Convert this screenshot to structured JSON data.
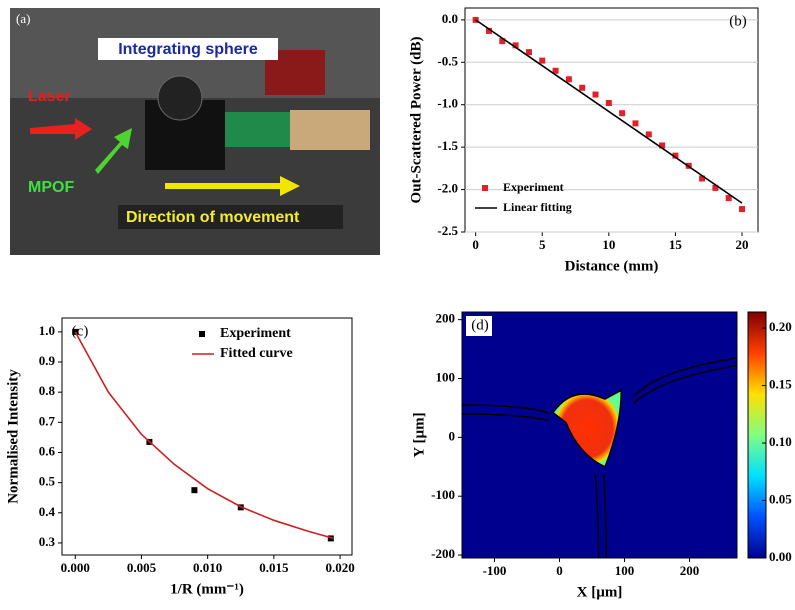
{
  "photo": {
    "panel_label": "(a)",
    "labels": [
      "Integrating sphere",
      "Laser",
      "MPOF",
      "Direction of movement"
    ]
  },
  "chart_data": [
    {
      "type": "scatter",
      "panel_label": "(b)",
      "x_label": "Distance (mm)",
      "y_label": "Out-Scattered Power (dB)",
      "xlim": [
        -0.8,
        21.2
      ],
      "ylim": [
        -2.5,
        0.14
      ],
      "xticks": [
        0,
        5,
        10,
        15,
        20
      ],
      "yticks": [
        {
          "value": 0,
          "label": "0.0"
        },
        -0.5,
        {
          "value": -1,
          "label": "-1.0"
        },
        -1.5,
        {
          "value": -2,
          "label": "-2.0"
        },
        -2.5
      ],
      "grid": true,
      "legend": "lower left",
      "series": [
        {
          "name": "Experiment",
          "type": "scatter",
          "color": "#e0202a",
          "x": [
            0,
            1,
            2,
            3,
            4,
            5,
            6,
            7,
            8,
            9,
            10,
            11,
            12,
            13,
            14,
            15,
            16,
            17,
            18,
            19,
            20
          ],
          "values": [
            0,
            -0.13,
            -0.25,
            -0.3,
            -0.38,
            -0.48,
            -0.6,
            -0.7,
            -0.8,
            -0.88,
            -0.98,
            -1.1,
            -1.22,
            -1.35,
            -1.48,
            -1.6,
            -1.72,
            -1.87,
            -1.98,
            -2.1,
            -2.23
          ]
        },
        {
          "name": "Linear fitting",
          "type": "line",
          "color": "#000000",
          "x": [
            0,
            20
          ],
          "values": [
            0,
            -2.16
          ]
        }
      ]
    },
    {
      "type": "scatter",
      "panel_label": "(c)",
      "x_label": "1/R (mm⁻¹)",
      "y_label": "Normalised Intensity",
      "xlim": [
        -0.001,
        0.0209
      ],
      "ylim": [
        0.26,
        1.046
      ],
      "xticks": [
        {
          "value": 0,
          "label": "0.000"
        },
        {
          "value": 0.005,
          "label": "0.005"
        },
        {
          "value": 0.01,
          "label": "0.010"
        },
        {
          "value": 0.015,
          "label": "0.015"
        },
        {
          "value": 0.02,
          "label": "0.020"
        }
      ],
      "yticks": [
        0.3,
        0.4,
        0.5,
        0.6,
        0.7,
        0.8,
        0.9,
        {
          "value": 1,
          "label": "1.0"
        }
      ],
      "grid": false,
      "legend": "upper right",
      "series": [
        {
          "name": "Experiment",
          "type": "scatter",
          "color": "#000000",
          "x": [
            0,
            0.0056,
            0.009,
            0.0125,
            0.0193
          ],
          "values": [
            1.0,
            0.635,
            0.475,
            0.418,
            0.315
          ]
        },
        {
          "name": "Fitted curve",
          "type": "line",
          "color": "#cc2020",
          "x": [
            0,
            0.0025,
            0.005,
            0.0075,
            0.01,
            0.0125,
            0.015,
            0.0175,
            0.0195
          ],
          "values": [
            1.0,
            0.8,
            0.66,
            0.56,
            0.48,
            0.42,
            0.375,
            0.34,
            0.315
          ]
        }
      ]
    },
    {
      "type": "heatmap",
      "panel_label": "(d)",
      "x_label": "X [µm]",
      "y_label": "Y [µm]",
      "xlim": [
        -150,
        273
      ],
      "ylim": [
        -205,
        213
      ],
      "xticks": [
        -100,
        0,
        100,
        200
      ],
      "yticks": [
        -200,
        -100,
        0,
        100,
        200
      ],
      "colorbar": {
        "lim": [
          0,
          0.214
        ],
        "colors": [
          "#00008f",
          "#0050ff",
          "#00e0ff",
          "#80ff80",
          "#ffe000",
          "#ff4000",
          "#800000"
        ],
        "ticks": [
          {
            "value": 0,
            "label": "0.00"
          },
          {
            "value": 0.05,
            "label": "0.05"
          },
          {
            "value": 0.1,
            "label": "0.10"
          },
          {
            "value": 0.15,
            "label": "0.15"
          },
          {
            "value": 0.2,
            "label": "0.20"
          }
        ]
      }
    }
  ]
}
